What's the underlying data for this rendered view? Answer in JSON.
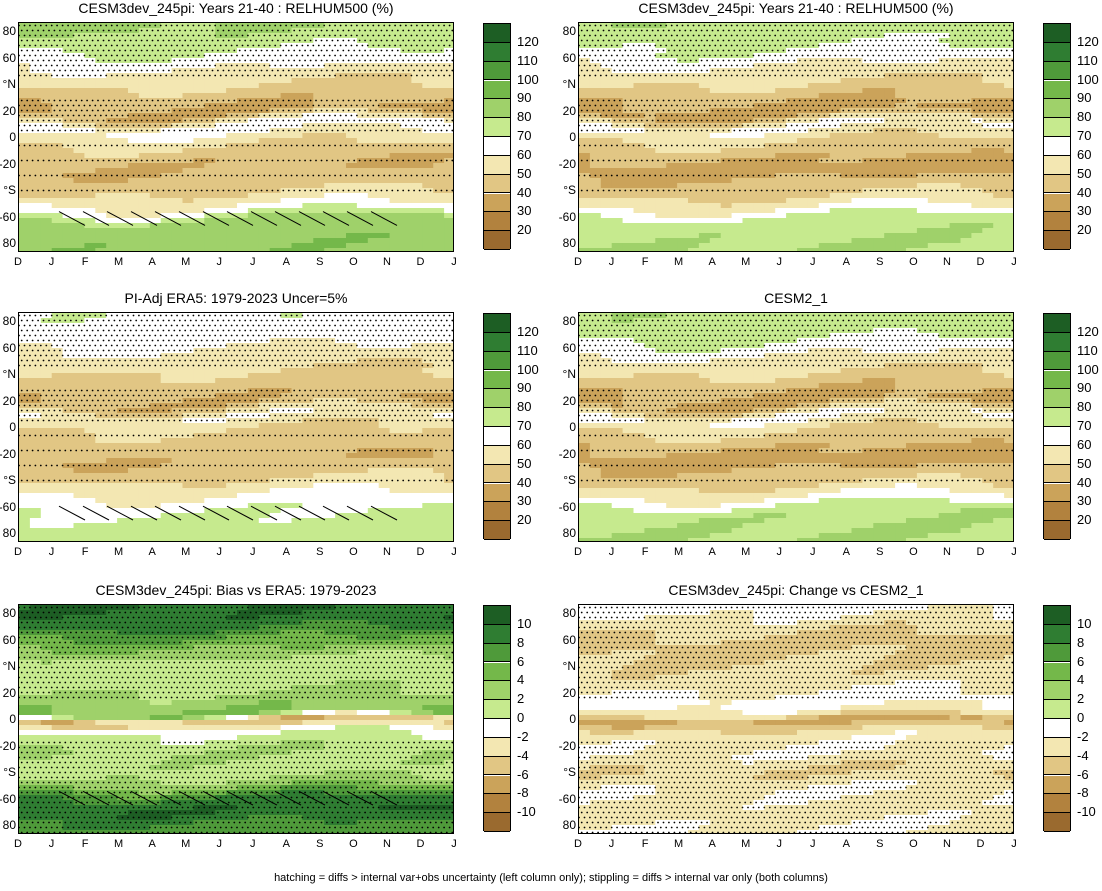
{
  "footer": "hatching = diffs > internal var+obs uncertainty (left column only); stippling = diffs > internal var only (both columns)",
  "x_ticks": [
    "D",
    "J",
    "F",
    "M",
    "A",
    "M",
    "J",
    "J",
    "A",
    "S",
    "O",
    "N",
    "D",
    "J"
  ],
  "y_ticks": [
    "80",
    "60",
    "°N",
    "20",
    "0",
    "-20",
    "°S",
    "-60",
    "80"
  ],
  "scales": {
    "abs": {
      "labels": [
        "120",
        "110",
        "100",
        "90",
        "80",
        "70",
        "60",
        "50",
        "40",
        "30",
        "20"
      ],
      "colors": [
        "#1d5e24",
        "#2f7d32",
        "#4f9a3a",
        "#74b84a",
        "#9fd16a",
        "#c6ea8e",
        "#ffffff",
        "#f3e7b2",
        "#e1c684",
        "#cba35a",
        "#b2823e",
        "#9a6a2f"
      ]
    },
    "diff": {
      "labels": [
        "10",
        "8",
        "6",
        "4",
        "2",
        "0",
        "-2",
        "-4",
        "-6",
        "-8",
        "-10"
      ],
      "colors": [
        "#1d5e24",
        "#2f7d32",
        "#4f9a3a",
        "#74b84a",
        "#9fd16a",
        "#c6ea8e",
        "#ffffff",
        "#f3e7b2",
        "#e1c684",
        "#cba35a",
        "#b2823e",
        "#9a6a2f"
      ]
    }
  },
  "panels": [
    {
      "title": "CESM3dev_245pi: Years 21-40 : RELHUM500 (%)",
      "scale": "abs"
    },
    {
      "title": "CESM3dev_245pi: Years 21-40 : RELHUM500 (%)",
      "scale": "abs"
    },
    {
      "title": "PI-Adj ERA5: 1979-2023 Uncer=5%",
      "scale": "abs"
    },
    {
      "title": "CESM2_1",
      "scale": "abs"
    },
    {
      "title": "CESM3dev_245pi: Bias vs ERA5: 1979-2023",
      "scale": "diff"
    },
    {
      "title": "CESM3dev_245pi: Change vs CESM2_1",
      "scale": "diff"
    }
  ],
  "chart_data": [
    {
      "type": "heatmap",
      "title": "CESM3dev_245pi: Years 21-40 : RELHUM500 (%)",
      "x": "months D..J",
      "y": "latitude 90N..90S",
      "zlabels": [
        120,
        110,
        100,
        90,
        80,
        70,
        60,
        50,
        40,
        30,
        20
      ],
      "zonal_profile": [
        [
          90,
          82
        ],
        [
          70,
          72
        ],
        [
          55,
          60
        ],
        [
          35,
          45
        ],
        [
          20,
          38
        ],
        [
          10,
          65
        ],
        [
          0,
          55
        ],
        [
          -15,
          42
        ],
        [
          -25,
          40
        ],
        [
          -40,
          48
        ],
        [
          -55,
          62
        ],
        [
          -65,
          85
        ],
        [
          -85,
          88
        ]
      ]
    },
    {
      "type": "heatmap",
      "title": "CESM3dev_245pi: Years 21-40 : RELHUM500 (%)",
      "x": "months D..J",
      "y": "latitude 90N..90S",
      "zlabels": [
        120,
        110,
        100,
        90,
        80,
        70,
        60,
        50,
        40,
        30,
        20
      ],
      "zonal_profile": [
        [
          90,
          78
        ],
        [
          70,
          70
        ],
        [
          55,
          58
        ],
        [
          35,
          44
        ],
        [
          20,
          36
        ],
        [
          10,
          62
        ],
        [
          0,
          52
        ],
        [
          -15,
          40
        ],
        [
          -25,
          36
        ],
        [
          -40,
          45
        ],
        [
          -55,
          60
        ],
        [
          -65,
          76
        ],
        [
          -85,
          80
        ]
      ]
    },
    {
      "type": "heatmap",
      "title": "PI-Adj ERA5: 1979-2023 Uncer=5%",
      "x": "months D..J",
      "y": "latitude 90N..90S",
      "zlabels": [
        120,
        110,
        100,
        90,
        80,
        70,
        60,
        50,
        40,
        30,
        20
      ],
      "zonal_profile": [
        [
          90,
          68
        ],
        [
          70,
          65
        ],
        [
          55,
          55
        ],
        [
          35,
          45
        ],
        [
          20,
          40
        ],
        [
          10,
          60
        ],
        [
          0,
          50
        ],
        [
          -15,
          44
        ],
        [
          -25,
          40
        ],
        [
          -40,
          50
        ],
        [
          -55,
          62
        ],
        [
          -65,
          70
        ],
        [
          -85,
          75
        ]
      ]
    },
    {
      "type": "heatmap",
      "title": "CESM2_1",
      "x": "months D..J",
      "y": "latitude 90N..90S",
      "zlabels": [
        120,
        110,
        100,
        90,
        80,
        70,
        60,
        50,
        40,
        30,
        20
      ],
      "zonal_profile": [
        [
          90,
          78
        ],
        [
          70,
          72
        ],
        [
          55,
          58
        ],
        [
          35,
          44
        ],
        [
          20,
          37
        ],
        [
          10,
          62
        ],
        [
          0,
          52
        ],
        [
          -15,
          40
        ],
        [
          -25,
          36
        ],
        [
          -40,
          45
        ],
        [
          -55,
          62
        ],
        [
          -65,
          78
        ],
        [
          -85,
          80
        ]
      ]
    },
    {
      "type": "heatmap",
      "title": "CESM3dev_245pi: Bias vs ERA5: 1979-2023",
      "x": "months D..J",
      "y": "latitude 90N..90S",
      "zlabels": [
        10,
        8,
        6,
        4,
        2,
        0,
        -2,
        -4,
        -6,
        -8,
        -10
      ],
      "zonal_profile": [
        [
          90,
          10
        ],
        [
          75,
          9
        ],
        [
          60,
          5
        ],
        [
          45,
          1
        ],
        [
          30,
          1
        ],
        [
          15,
          3
        ],
        [
          5,
          4
        ],
        [
          0,
          -6
        ],
        [
          -10,
          0
        ],
        [
          -25,
          2
        ],
        [
          -40,
          1
        ],
        [
          -50,
          3
        ],
        [
          -60,
          8
        ],
        [
          -70,
          10
        ],
        [
          -85,
          7
        ]
      ]
    },
    {
      "type": "heatmap",
      "title": "CESM3dev_245pi: Change vs CESM2_1",
      "x": "months D..J",
      "y": "latitude 90N..90S",
      "zlabels": [
        10,
        8,
        6,
        4,
        2,
        0,
        -2,
        -4,
        -6,
        -8,
        -10
      ],
      "zonal_profile": [
        [
          90,
          -1
        ],
        [
          75,
          -3
        ],
        [
          60,
          -5
        ],
        [
          45,
          -4
        ],
        [
          30,
          -3
        ],
        [
          15,
          -1
        ],
        [
          5,
          -3
        ],
        [
          0,
          -7
        ],
        [
          -10,
          -3
        ],
        [
          -25,
          -2
        ],
        [
          -40,
          -4
        ],
        [
          -55,
          -2
        ],
        [
          -70,
          -3
        ],
        [
          -85,
          -2
        ]
      ]
    }
  ]
}
